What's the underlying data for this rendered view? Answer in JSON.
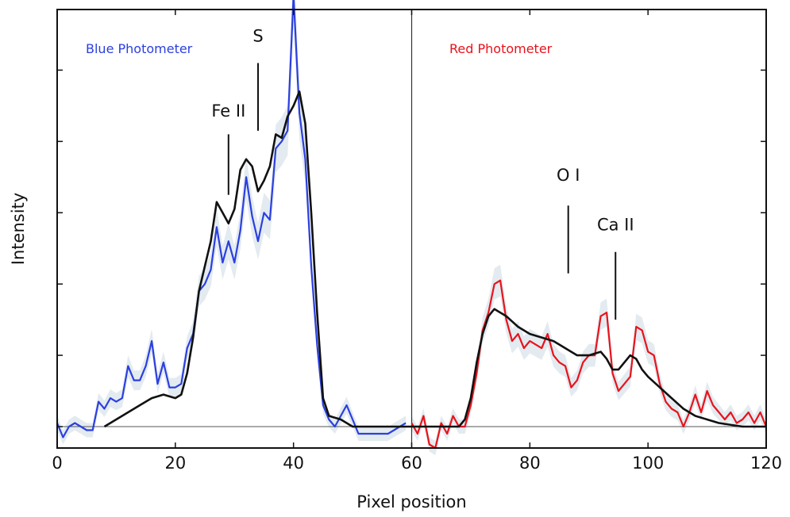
{
  "chart_data": {
    "type": "line",
    "xlabel": "Pixel position",
    "ylabel": "Intensity",
    "xlim": [
      0,
      120
    ],
    "ylim": [
      -0.06,
      1.17
    ],
    "grid": false,
    "x_ticks": [
      0,
      20,
      40,
      60,
      80,
      100,
      120
    ],
    "x_tick_labels": [
      "0",
      "20",
      "40",
      "60",
      "80",
      "100",
      "120"
    ],
    "y_tick_labels_shown": false,
    "divider_x": 60,
    "colors": {
      "blue": "#2b3fe0",
      "red": "#e8131b",
      "model": "#111111",
      "error_band": "#d7e2ea"
    },
    "panels": [
      {
        "label": "Blue Photometer",
        "color": "#2b3fe0",
        "position": "top-left"
      },
      {
        "label": "Red Photometer",
        "color": "#e8131b",
        "position": "top-center-right"
      }
    ],
    "series": [
      {
        "name": "Blue Photometer",
        "color": "#2b3fe0",
        "x": [
          0,
          1,
          2,
          3,
          4,
          5,
          6,
          7,
          8,
          9,
          10,
          11,
          12,
          13,
          14,
          15,
          16,
          17,
          18,
          19,
          20,
          21,
          22,
          23,
          24,
          25,
          26,
          27,
          28,
          29,
          30,
          31,
          32,
          33,
          34,
          35,
          36,
          37,
          38,
          39,
          40,
          41,
          42,
          43,
          44,
          45,
          46,
          47,
          48,
          49,
          50,
          51,
          52,
          53,
          54,
          55,
          56,
          57,
          58,
          59
        ],
        "y": [
          0.01,
          -0.03,
          0.0,
          0.01,
          0.0,
          -0.01,
          -0.01,
          0.07,
          0.05,
          0.08,
          0.07,
          0.08,
          0.17,
          0.13,
          0.13,
          0.17,
          0.24,
          0.12,
          0.18,
          0.11,
          0.11,
          0.12,
          0.22,
          0.26,
          0.38,
          0.4,
          0.44,
          0.56,
          0.46,
          0.52,
          0.46,
          0.55,
          0.7,
          0.59,
          0.52,
          0.6,
          0.58,
          0.78,
          0.8,
          0.83,
          1.21,
          0.88,
          0.75,
          0.45,
          0.23,
          0.06,
          0.02,
          0.0,
          0.03,
          0.06,
          0.02,
          -0.02,
          -0.02,
          -0.02,
          -0.02,
          -0.02,
          -0.02,
          -0.01,
          0.0,
          0.01
        ]
      },
      {
        "name": "Red Photometer",
        "color": "#e8131b",
        "x": [
          60,
          61,
          62,
          63,
          64,
          65,
          66,
          67,
          68,
          69,
          70,
          71,
          72,
          73,
          74,
          75,
          76,
          77,
          78,
          79,
          80,
          81,
          82,
          83,
          84,
          85,
          86,
          87,
          88,
          89,
          90,
          91,
          92,
          93,
          94,
          95,
          96,
          97,
          98,
          99,
          100,
          101,
          102,
          103,
          104,
          105,
          106,
          107,
          108,
          109,
          110,
          111,
          112,
          113,
          114,
          115,
          116,
          117,
          118,
          119,
          120
        ],
        "y": [
          0.01,
          -0.02,
          0.03,
          -0.05,
          -0.06,
          0.01,
          -0.02,
          0.03,
          0.0,
          0.0,
          0.06,
          0.15,
          0.27,
          0.32,
          0.4,
          0.41,
          0.3,
          0.24,
          0.26,
          0.22,
          0.24,
          0.23,
          0.22,
          0.26,
          0.2,
          0.18,
          0.17,
          0.11,
          0.13,
          0.18,
          0.2,
          0.2,
          0.31,
          0.32,
          0.15,
          0.1,
          0.12,
          0.14,
          0.28,
          0.27,
          0.21,
          0.2,
          0.12,
          0.07,
          0.05,
          0.04,
          0.0,
          0.04,
          0.09,
          0.04,
          0.1,
          0.06,
          0.04,
          0.02,
          0.04,
          0.01,
          0.02,
          0.04,
          0.01,
          0.04,
          0.0
        ]
      },
      {
        "name": "",
        "color": "#111111",
        "x": [
          8,
          10,
          12,
          14,
          16,
          18,
          20,
          21,
          22,
          23,
          24,
          25,
          26,
          27,
          28,
          29,
          30,
          31,
          32,
          33,
          34,
          35,
          36,
          37,
          38,
          39,
          40,
          41,
          42,
          43,
          44,
          45,
          46,
          48,
          50,
          52,
          56,
          60,
          64,
          68,
          69,
          70,
          71,
          72,
          73,
          74,
          76,
          78,
          80,
          82,
          84,
          86,
          88,
          90,
          92,
          93,
          94,
          95,
          96,
          97,
          98,
          99,
          100,
          102,
          104,
          106,
          108,
          110,
          112,
          116,
          120
        ],
        "y": [
          0.0,
          0.02,
          0.04,
          0.06,
          0.08,
          0.09,
          0.08,
          0.09,
          0.15,
          0.25,
          0.38,
          0.45,
          0.52,
          0.63,
          0.6,
          0.57,
          0.61,
          0.72,
          0.75,
          0.73,
          0.66,
          0.69,
          0.73,
          0.82,
          0.81,
          0.87,
          0.9,
          0.94,
          0.85,
          0.6,
          0.32,
          0.08,
          0.03,
          0.02,
          0.0,
          0.0,
          0.0,
          0.0,
          0.0,
          0.0,
          0.02,
          0.08,
          0.18,
          0.26,
          0.31,
          0.33,
          0.31,
          0.28,
          0.26,
          0.25,
          0.24,
          0.22,
          0.2,
          0.2,
          0.21,
          0.19,
          0.16,
          0.16,
          0.18,
          0.2,
          0.19,
          0.16,
          0.14,
          0.11,
          0.08,
          0.05,
          0.03,
          0.02,
          0.01,
          0.0,
          0.0
        ]
      }
    ],
    "annotations": [
      {
        "text": "Fe II",
        "x": 29,
        "y_text": 0.87,
        "line_y": [
          0.65,
          0.82
        ]
      },
      {
        "text": "S",
        "x": 34,
        "y_text": 1.08,
        "line_y": [
          0.83,
          1.02
        ]
      },
      {
        "text": "O I",
        "x": 86.5,
        "y_text": 0.69,
        "line_y": [
          0.43,
          0.62
        ]
      },
      {
        "text": "Ca II",
        "x": 94.5,
        "y_text": 0.55,
        "line_y": [
          0.3,
          0.49
        ]
      }
    ]
  }
}
